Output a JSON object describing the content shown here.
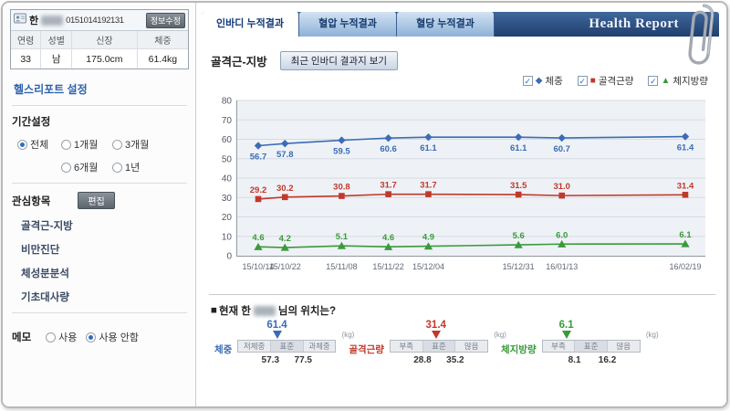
{
  "icons": {
    "check": "✓"
  },
  "user": {
    "name": "한",
    "id": "0151014192131",
    "edit_button": "정보수정",
    "fields": [
      {
        "label": "연령",
        "value": "33"
      },
      {
        "label": "성별",
        "value": "남"
      },
      {
        "label": "신장",
        "value": "175.0cm"
      },
      {
        "label": "체중",
        "value": "61.4kg"
      }
    ]
  },
  "sidebar": {
    "settings_title": "헬스리포트 설정",
    "period": {
      "label": "기간설정",
      "options": [
        "전체",
        "1개월",
        "3개월",
        "6개월",
        "1년"
      ],
      "selected": "전체"
    },
    "interest": {
      "label": "관심항목",
      "edit_button": "편집",
      "items": [
        "골격근-지방",
        "비만진단",
        "체성분분석",
        "기초대사량"
      ]
    },
    "memo": {
      "label": "메모",
      "options": [
        "사용",
        "사용 안함"
      ],
      "selected": "사용 안함"
    }
  },
  "tabs": [
    {
      "label": "인바디 누적결과",
      "active": true
    },
    {
      "label": "혈압 누적결과",
      "active": false
    },
    {
      "label": "혈당 누적결과",
      "active": false
    }
  ],
  "header": {
    "title": "Health Report"
  },
  "chart": {
    "title": "골격근-지방",
    "button": "최근 인바디 결과지 보기"
  },
  "chart_data": {
    "type": "line",
    "x": [
      "15/10/14",
      "15/10/22",
      "15/11/08",
      "15/11/22",
      "15/12/04",
      "15/12/31",
      "16/01/13",
      "16/02/19"
    ],
    "series": [
      {
        "name": "체중",
        "marker": "diamond",
        "color": "#3b6cb4",
        "values": [
          56.7,
          57.8,
          59.5,
          60.6,
          61.1,
          61.1,
          60.7,
          61.4
        ]
      },
      {
        "name": "골격근량",
        "marker": "square",
        "color": "#c0392b",
        "values": [
          29.2,
          30.2,
          30.8,
          31.7,
          31.7,
          31.5,
          31.0,
          31.4
        ]
      },
      {
        "name": "체지방량",
        "marker": "triangle",
        "color": "#3a9a3a",
        "values": [
          4.6,
          4.2,
          5.1,
          4.6,
          4.9,
          5.6,
          6.0,
          6.1
        ]
      }
    ],
    "ylim": [
      0,
      80
    ],
    "yticks": [
      0,
      10,
      20,
      30,
      40,
      50,
      60,
      70,
      80
    ],
    "grid": true,
    "legend_position": "top-right"
  },
  "position": {
    "bullet": "■",
    "prefix": "현재 한",
    "suffix": "님의 위치는?"
  },
  "gauges": [
    {
      "label": "체중",
      "value": "61.4",
      "color": "#3b6cb4",
      "zones": [
        "저체중",
        "표준",
        "과체중"
      ],
      "low": "57.3",
      "high": "77.5",
      "unit": "(kg)",
      "marker_percent": 40
    },
    {
      "label": "골격근량",
      "value": "31.4",
      "color": "#c0392b",
      "zones": [
        "부족",
        "표준",
        "많음"
      ],
      "low": "28.8",
      "high": "35.2",
      "unit": "(kg)",
      "marker_percent": 47
    },
    {
      "label": "체지방량",
      "value": "6.1",
      "color": "#3a9a3a",
      "zones": [
        "부족",
        "표준",
        "많음"
      ],
      "low": "8.1",
      "high": "16.2",
      "unit": "(kg)",
      "marker_percent": 25
    }
  ]
}
